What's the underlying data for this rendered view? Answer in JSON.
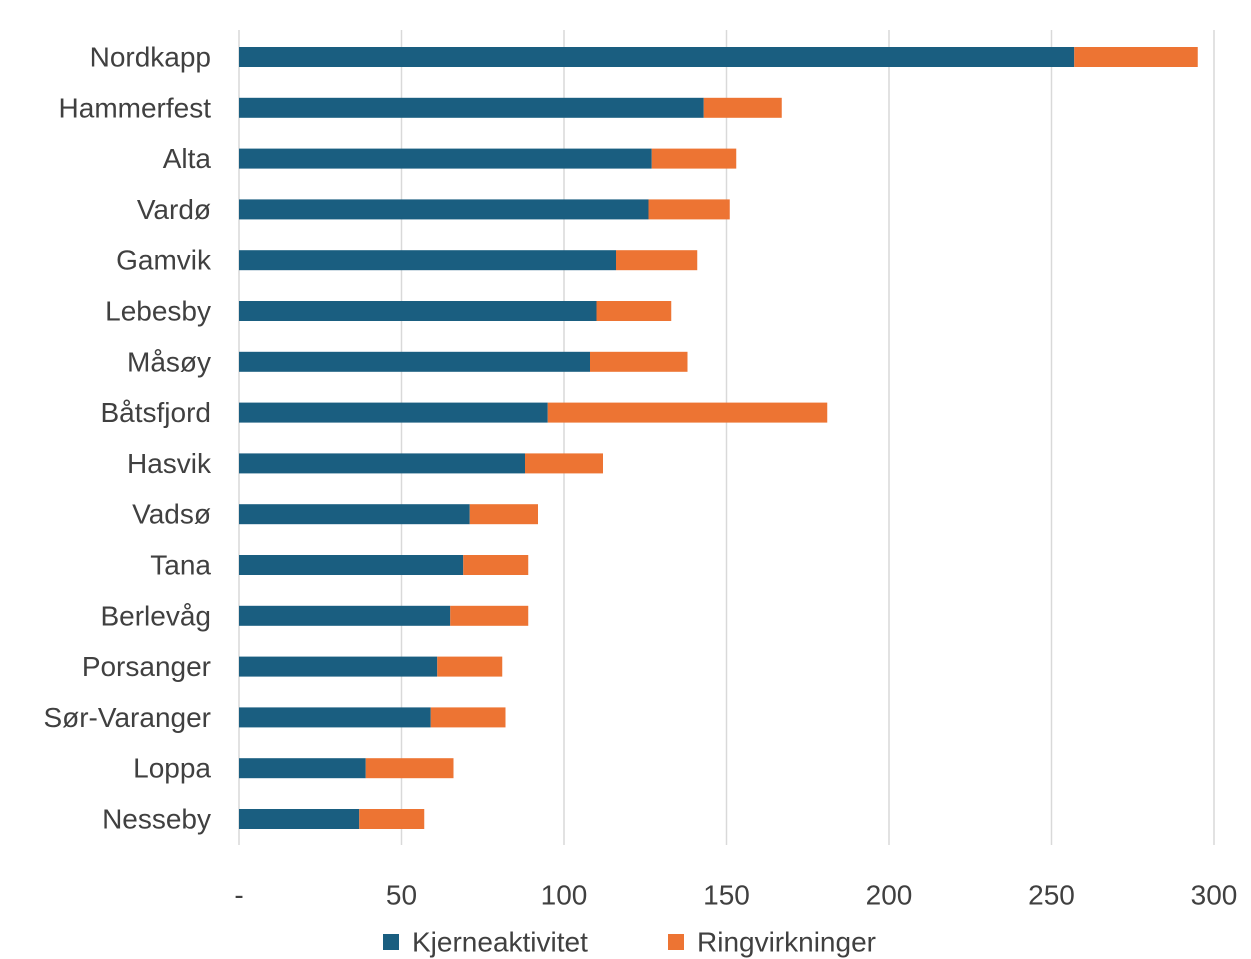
{
  "chart_data": {
    "type": "bar",
    "orientation": "horizontal",
    "stacked": true,
    "categories": [
      "Nordkapp",
      "Hammerfest",
      "Alta",
      "Vardø",
      "Gamvik",
      "Lebesby",
      "Måsøy",
      "Båtsfjord",
      "Hasvik",
      "Vadsø",
      "Tana",
      "Berlevåg",
      "Porsanger",
      "Sør-Varanger",
      "Loppa",
      "Nesseby"
    ],
    "series": [
      {
        "name": "Kjerneaktivitet",
        "color": "#1a5e80",
        "values": [
          257,
          143,
          127,
          126,
          116,
          110,
          108,
          95,
          88,
          71,
          69,
          65,
          61,
          59,
          39,
          37
        ]
      },
      {
        "name": "Ringvirkninger",
        "color": "#ed7433",
        "values": [
          38,
          24,
          26,
          25,
          25,
          23,
          30,
          86,
          24,
          21,
          20,
          24,
          20,
          23,
          27,
          20
        ]
      }
    ],
    "xlim": [
      0,
      300
    ],
    "x_ticks": [
      0,
      50,
      100,
      150,
      200,
      250,
      300
    ],
    "x_tick_labels": [
      "-",
      "50",
      "100",
      "150",
      "200",
      "250",
      "300"
    ],
    "grid": "vertical",
    "legend": "bottom"
  }
}
